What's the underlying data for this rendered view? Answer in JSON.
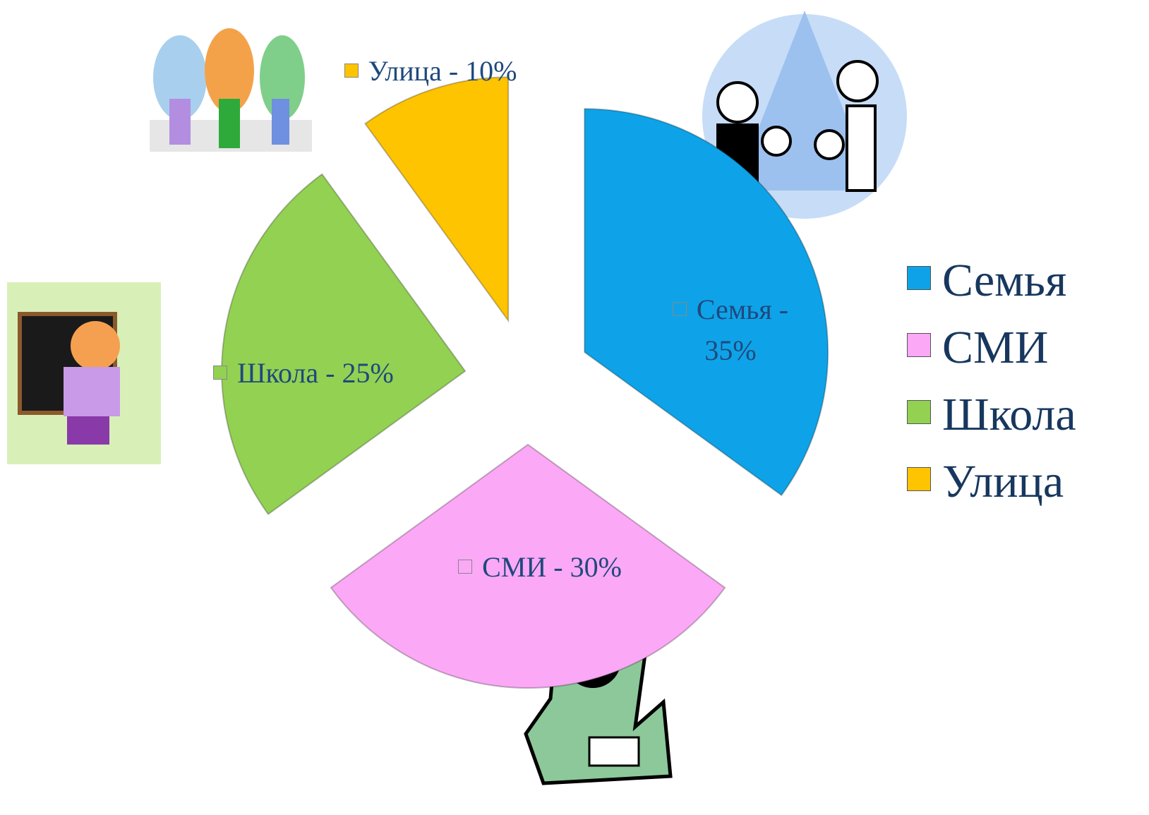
{
  "chart_data": {
    "type": "pie",
    "categories": [
      "Семья",
      "СМИ",
      "Школа",
      "Улица"
    ],
    "values": [
      35,
      30,
      25,
      10
    ],
    "value_labels": [
      "Семья - 35%",
      "СМИ - 30%",
      "Школа - 25%",
      "Улица - 10%"
    ],
    "colors": [
      "#0ea3e8",
      "#fba8f6",
      "#93d152",
      "#ffc400"
    ],
    "legend": "right"
  }
}
